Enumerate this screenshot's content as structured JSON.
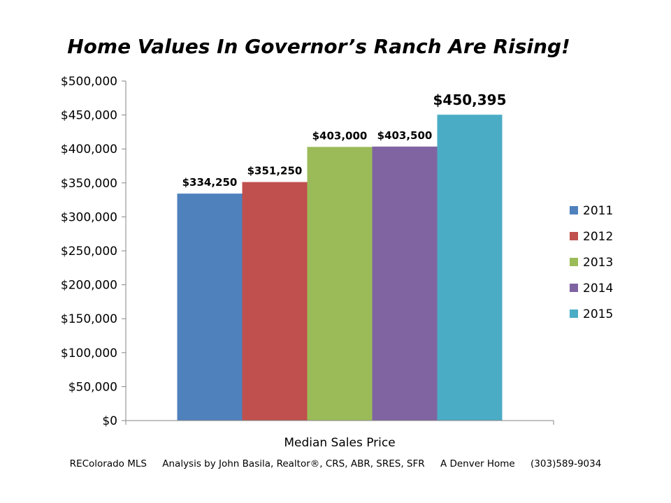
{
  "chart_data": {
    "type": "bar",
    "title": "Home Values In Governor’s Ranch Are Rising!",
    "categories": [
      "Median Sales Price"
    ],
    "series": [
      {
        "name": "2011",
        "values": [
          334250
        ],
        "label": "$334,250",
        "color": "#4f81bd"
      },
      {
        "name": "2012",
        "values": [
          351250
        ],
        "label": "$351,250",
        "color": "#c0504d"
      },
      {
        "name": "2013",
        "values": [
          403000
        ],
        "label": "$403,000",
        "color": "#9bbb59"
      },
      {
        "name": "2014",
        "values": [
          403500
        ],
        "label": "$403,500",
        "color": "#8064a2"
      },
      {
        "name": "2015",
        "values": [
          450395
        ],
        "label": "$450,395",
        "color": "#4bacc6"
      }
    ],
    "ylim": [
      0,
      500000
    ],
    "yticks": [
      0,
      50000,
      100000,
      150000,
      200000,
      250000,
      300000,
      350000,
      400000,
      450000,
      500000
    ],
    "ytick_labels": [
      "$0",
      "$50,000",
      "$100,000",
      "$150,000",
      "$200,000",
      "$250,000",
      "$300,000",
      "$350,000",
      "$400,000",
      "$450,000",
      "$500,000"
    ],
    "xlabel": "",
    "ylabel": "",
    "grid": false,
    "legend_position": "right"
  },
  "footer": {
    "source": "REColorado MLS",
    "analysis": "Analysis by John Basila, Realtor®, CRS, ABR, SRES, SFR",
    "company": "A Denver Home",
    "phone": "(303)589-9034"
  }
}
